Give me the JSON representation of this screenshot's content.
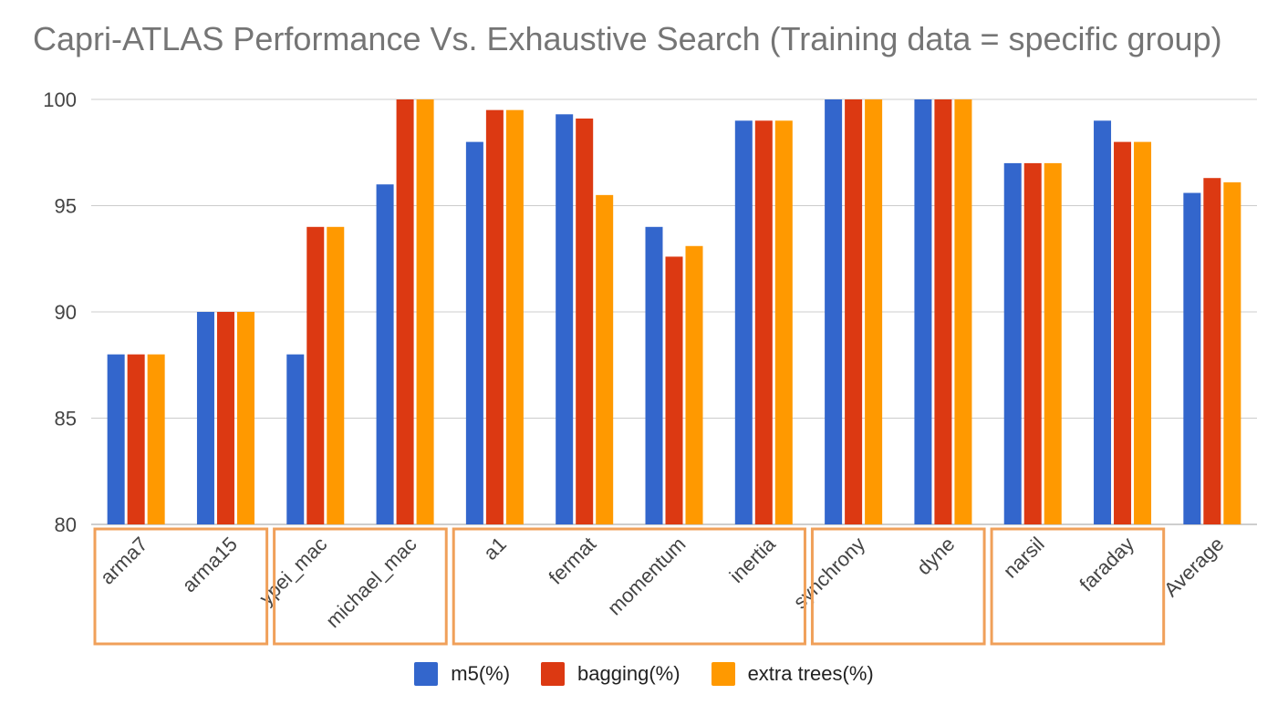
{
  "chart_data": {
    "type": "bar",
    "title": "Capri-ATLAS Performance Vs. Exhaustive Search (Training data = specific group)",
    "xlabel": "",
    "ylabel": "",
    "ylim": [
      80,
      100
    ],
    "yticks": [
      80,
      85,
      90,
      95,
      100
    ],
    "grid": true,
    "legend_position": "bottom",
    "categories": [
      "arma7",
      "arma15",
      "ypei_mac",
      "michael_mac",
      "a1",
      "fermat",
      "momentum",
      "inertia",
      "synchrony",
      "dyne",
      "narsil",
      "faraday",
      "Average"
    ],
    "series": [
      {
        "name": "m5(%)",
        "color": "#3366cc",
        "values": [
          88,
          90,
          88,
          96,
          98,
          99.3,
          94,
          99,
          100,
          100,
          97,
          99,
          95.6
        ]
      },
      {
        "name": "bagging(%)",
        "color": "#dc3912",
        "values": [
          88,
          90,
          94,
          100,
          99.5,
          99.1,
          92.6,
          99,
          100,
          100,
          97,
          98,
          96.3
        ]
      },
      {
        "name": "extra trees(%)",
        "color": "#ff9900",
        "values": [
          88,
          90,
          94,
          100,
          99.5,
          95.5,
          93.1,
          99,
          100,
          100,
          97,
          98,
          96.1
        ]
      }
    ],
    "group_boxes": [
      {
        "categories": [
          "arma7",
          "arma15"
        ]
      },
      {
        "categories": [
          "ypei_mac",
          "michael_mac"
        ]
      },
      {
        "categories": [
          "a1",
          "fermat",
          "momentum",
          "inertia"
        ]
      },
      {
        "categories": [
          "synchrony",
          "dyne"
        ]
      },
      {
        "categories": [
          "narsil",
          "faraday"
        ]
      }
    ],
    "group_box_color": "#f0a05a"
  }
}
